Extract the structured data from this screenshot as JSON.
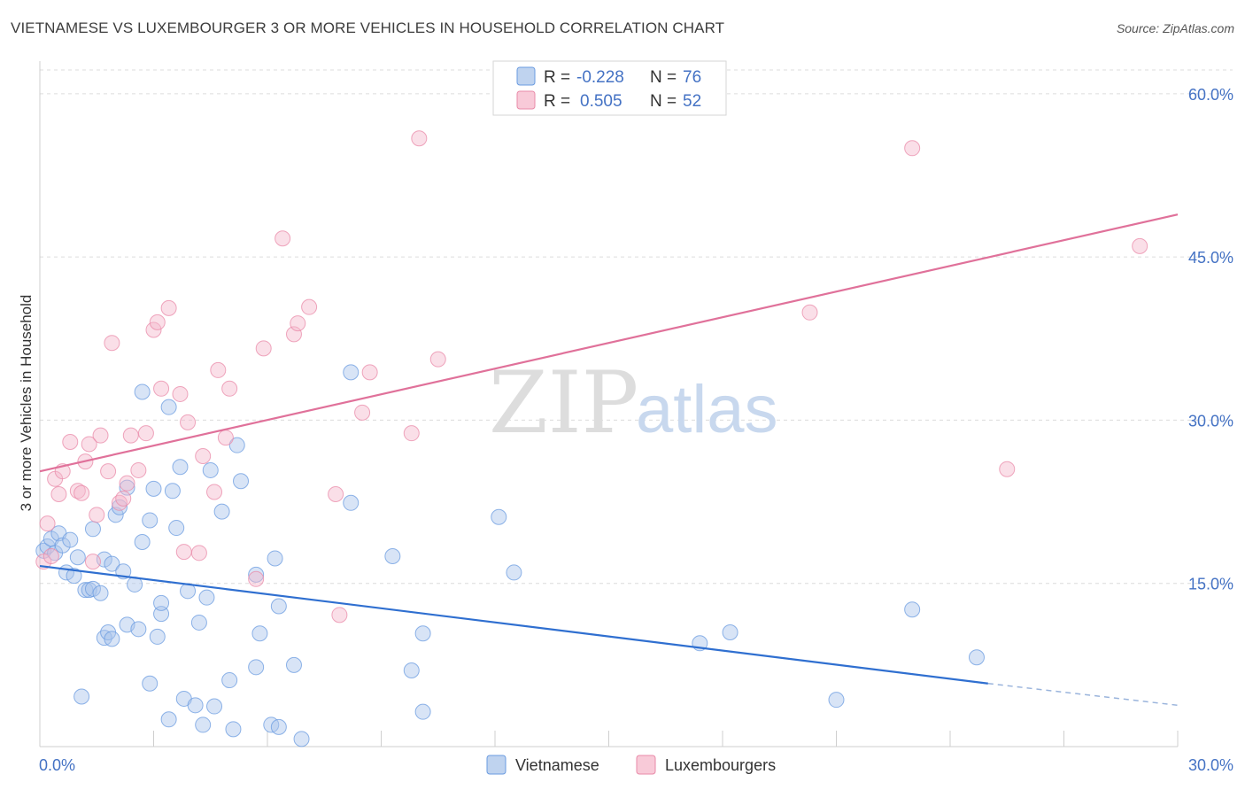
{
  "title": "VIETNAMESE VS LUXEMBOURGER 3 OR MORE VEHICLES IN HOUSEHOLD CORRELATION CHART",
  "source": "Source: ZipAtlas.com",
  "watermark": {
    "zip": "ZIP",
    "atlas": "atlas"
  },
  "legend": {
    "r_label": "R =",
    "n_label": "N =",
    "rows": [
      {
        "r": "-0.228",
        "n": "76",
        "color": "#a9c4ea"
      },
      {
        "r": "0.505",
        "n": "52",
        "color": "#f5b8cb"
      }
    ]
  },
  "bottom_legend": [
    {
      "label": "Vietnamese",
      "color": "#a9c4ea"
    },
    {
      "label": "Luxembourgers",
      "color": "#f5b8cb"
    }
  ],
  "chart_data": {
    "type": "scatter",
    "title": "VIETNAMESE VS LUXEMBOURGER 3 OR MORE VEHICLES IN HOUSEHOLD CORRELATION CHART",
    "xlabel": "",
    "ylabel": "3 or more Vehicles in Household",
    "xlim": [
      0,
      30
    ],
    "ylim": [
      0,
      63
    ],
    "x_tick_labels": [
      "0.0%",
      "30.0%"
    ],
    "y_ticks": [
      15,
      30,
      45,
      60
    ],
    "y_tick_labels": [
      "15.0%",
      "30.0%",
      "45.0%",
      "60.0%"
    ],
    "grid": true,
    "legend_position": "top-center",
    "series": [
      {
        "name": "Vietnamese",
        "color": "#6a9be0",
        "fill": "#a9c4ea",
        "trend": {
          "x": [
            0,
            25
          ],
          "y": [
            16.6,
            5.8
          ],
          "dashed_to": [
            30,
            3.8
          ]
        },
        "points": [
          [
            0.1,
            18.0
          ],
          [
            0.2,
            18.4
          ],
          [
            0.3,
            19.1
          ],
          [
            0.4,
            17.8
          ],
          [
            0.5,
            19.6
          ],
          [
            0.6,
            18.5
          ],
          [
            0.7,
            16.0
          ],
          [
            0.8,
            19.0
          ],
          [
            0.9,
            15.7
          ],
          [
            1.0,
            17.4
          ],
          [
            1.1,
            4.6
          ],
          [
            1.2,
            14.4
          ],
          [
            1.3,
            14.4
          ],
          [
            1.4,
            20.0
          ],
          [
            1.4,
            14.5
          ],
          [
            1.6,
            14.1
          ],
          [
            1.7,
            17.2
          ],
          [
            1.7,
            10.0
          ],
          [
            1.8,
            10.5
          ],
          [
            1.9,
            16.8
          ],
          [
            1.9,
            9.9
          ],
          [
            2.0,
            21.3
          ],
          [
            2.1,
            22.0
          ],
          [
            2.2,
            16.1
          ],
          [
            2.3,
            23.8
          ],
          [
            2.3,
            11.2
          ],
          [
            2.5,
            14.9
          ],
          [
            2.6,
            10.8
          ],
          [
            2.7,
            18.8
          ],
          [
            2.7,
            32.6
          ],
          [
            2.9,
            5.8
          ],
          [
            2.9,
            20.8
          ],
          [
            3.0,
            23.7
          ],
          [
            3.1,
            10.1
          ],
          [
            3.2,
            12.2
          ],
          [
            3.2,
            13.2
          ],
          [
            3.4,
            31.2
          ],
          [
            3.4,
            2.5
          ],
          [
            3.5,
            23.5
          ],
          [
            3.6,
            20.1
          ],
          [
            3.7,
            25.7
          ],
          [
            3.8,
            4.4
          ],
          [
            3.9,
            14.3
          ],
          [
            4.1,
            3.8
          ],
          [
            4.2,
            11.4
          ],
          [
            4.3,
            2.0
          ],
          [
            4.4,
            13.7
          ],
          [
            4.5,
            25.4
          ],
          [
            4.6,
            3.7
          ],
          [
            4.8,
            21.6
          ],
          [
            5.0,
            6.1
          ],
          [
            5.1,
            1.6
          ],
          [
            5.2,
            27.7
          ],
          [
            5.3,
            24.4
          ],
          [
            5.7,
            7.3
          ],
          [
            5.7,
            15.8
          ],
          [
            5.8,
            10.4
          ],
          [
            6.1,
            2.0
          ],
          [
            6.2,
            17.3
          ],
          [
            6.3,
            1.8
          ],
          [
            6.3,
            12.9
          ],
          [
            6.7,
            7.5
          ],
          [
            6.9,
            0.7
          ],
          [
            8.2,
            34.4
          ],
          [
            8.2,
            22.4
          ],
          [
            9.3,
            17.5
          ],
          [
            9.8,
            7.0
          ],
          [
            10.1,
            3.2
          ],
          [
            10.1,
            10.4
          ],
          [
            12.1,
            21.1
          ],
          [
            12.5,
            16.0
          ],
          [
            17.4,
            9.5
          ],
          [
            18.2,
            10.5
          ],
          [
            21.0,
            4.3
          ],
          [
            23.0,
            12.6
          ],
          [
            24.7,
            8.2
          ]
        ]
      },
      {
        "name": "Luxembourgers",
        "color": "#e98aa8",
        "fill": "#f5b8cb",
        "trend": {
          "x": [
            0,
            30
          ],
          "y": [
            25.3,
            48.9
          ]
        },
        "points": [
          [
            0.1,
            17.0
          ],
          [
            0.2,
            20.5
          ],
          [
            0.3,
            17.5
          ],
          [
            0.4,
            24.6
          ],
          [
            0.5,
            23.2
          ],
          [
            0.6,
            25.3
          ],
          [
            0.8,
            28.0
          ],
          [
            1.0,
            23.5
          ],
          [
            1.1,
            23.3
          ],
          [
            1.2,
            26.2
          ],
          [
            1.3,
            27.8
          ],
          [
            1.4,
            17.0
          ],
          [
            1.5,
            21.3
          ],
          [
            1.6,
            28.6
          ],
          [
            1.8,
            25.3
          ],
          [
            1.9,
            37.1
          ],
          [
            2.1,
            22.4
          ],
          [
            2.2,
            22.8
          ],
          [
            2.3,
            24.2
          ],
          [
            2.4,
            28.6
          ],
          [
            2.6,
            25.4
          ],
          [
            2.8,
            28.8
          ],
          [
            3.0,
            38.3
          ],
          [
            3.1,
            39.0
          ],
          [
            3.2,
            32.9
          ],
          [
            3.4,
            40.3
          ],
          [
            3.7,
            32.4
          ],
          [
            3.8,
            17.9
          ],
          [
            3.9,
            29.8
          ],
          [
            4.2,
            17.8
          ],
          [
            4.3,
            26.7
          ],
          [
            4.6,
            23.4
          ],
          [
            4.7,
            34.6
          ],
          [
            4.9,
            28.4
          ],
          [
            5.0,
            32.9
          ],
          [
            5.7,
            15.4
          ],
          [
            5.9,
            36.6
          ],
          [
            6.4,
            46.7
          ],
          [
            6.7,
            37.9
          ],
          [
            6.8,
            38.9
          ],
          [
            7.1,
            40.4
          ],
          [
            7.8,
            23.2
          ],
          [
            7.9,
            12.1
          ],
          [
            8.5,
            30.7
          ],
          [
            8.7,
            34.4
          ],
          [
            9.8,
            28.8
          ],
          [
            10.0,
            55.9
          ],
          [
            10.5,
            35.6
          ],
          [
            20.3,
            39.9
          ],
          [
            23.0,
            55.0
          ],
          [
            25.5,
            25.5
          ],
          [
            29.0,
            46.0
          ]
        ]
      }
    ]
  }
}
